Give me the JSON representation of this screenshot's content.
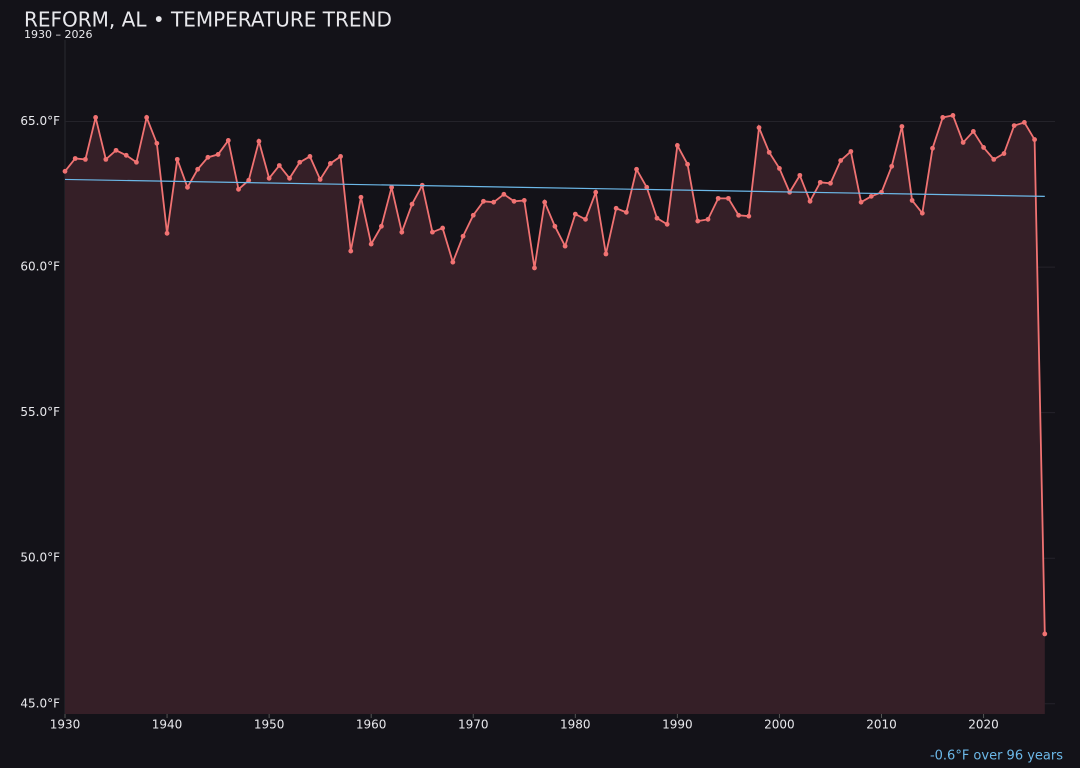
{
  "chart_data": {
    "type": "line",
    "title": "REFORM, AL • TEMPERATURE TREND",
    "subtitle": "1930 – 2026",
    "annotation": "-0.6°F over 96 years",
    "x": [
      1930,
      1931,
      1932,
      1933,
      1934,
      1935,
      1936,
      1937,
      1938,
      1939,
      1940,
      1941,
      1942,
      1943,
      1944,
      1945,
      1946,
      1947,
      1948,
      1949,
      1950,
      1951,
      1952,
      1953,
      1954,
      1955,
      1956,
      1957,
      1958,
      1959,
      1960,
      1961,
      1962,
      1963,
      1964,
      1965,
      1966,
      1967,
      1968,
      1969,
      1970,
      1971,
      1972,
      1973,
      1974,
      1975,
      1976,
      1977,
      1978,
      1979,
      1980,
      1981,
      1982,
      1983,
      1984,
      1985,
      1986,
      1987,
      1988,
      1989,
      1990,
      1991,
      1992,
      1993,
      1994,
      1995,
      1996,
      1997,
      1998,
      1999,
      2000,
      2001,
      2002,
      2003,
      2004,
      2005,
      2006,
      2007,
      2008,
      2009,
      2010,
      2011,
      2012,
      2013,
      2014,
      2015,
      2016,
      2017,
      2018,
      2019,
      2020,
      2021,
      2022,
      2023,
      2024,
      2025,
      2026
    ],
    "series": [
      {
        "color": "#f07272",
        "fill": "#351f27",
        "values": [
          63.29,
          63.73,
          63.7,
          65.14,
          63.7,
          64.01,
          63.84,
          63.6,
          65.14,
          64.25,
          61.16,
          63.7,
          62.74,
          63.36,
          63.77,
          63.87,
          64.35,
          62.67,
          62.98,
          64.32,
          63.05,
          63.49,
          63.05,
          63.6,
          63.8,
          63.01,
          63.56,
          63.8,
          60.55,
          62.4,
          60.79,
          61.4,
          62.74,
          61.2,
          62.16,
          62.81,
          61.2,
          61.34,
          60.17,
          61.06,
          61.78,
          62.26,
          62.23,
          62.5,
          62.26,
          62.29,
          59.97,
          62.23,
          61.4,
          60.72,
          61.82,
          61.64,
          62.57,
          60.45,
          62.02,
          61.88,
          63.36,
          62.74,
          61.68,
          61.47,
          64.18,
          63.53,
          61.58,
          61.64,
          62.36,
          62.36,
          61.78,
          61.75,
          64.79,
          63.94,
          63.39,
          62.57,
          63.15,
          62.26,
          62.91,
          62.88,
          63.66,
          63.97,
          62.23,
          62.43,
          62.57,
          63.46,
          64.83,
          62.29,
          61.85,
          64.08,
          65.14,
          65.21,
          64.28,
          64.66,
          64.11,
          63.7,
          63.9,
          64.86,
          64.97,
          64.38,
          47.4
        ]
      }
    ],
    "trend": {
      "color": "#6cb8e8",
      "x": [
        1930,
        2026
      ],
      "values": [
        63.01,
        62.43
      ]
    },
    "xlim": [
      1930,
      2027
    ],
    "xticks": [
      1930,
      1940,
      1950,
      1960,
      1970,
      1980,
      1990,
      2000,
      2010,
      2020
    ],
    "ylim": [
      44.65,
      67.8
    ],
    "yticks": [
      {
        "value": 45,
        "label": "45.0°F"
      },
      {
        "value": 50,
        "label": "50.0°F"
      },
      {
        "value": 55,
        "label": "55.0°F"
      },
      {
        "value": 60,
        "label": "60.0°F"
      },
      {
        "value": 65,
        "label": "65.0°F"
      }
    ],
    "grid": true
  }
}
